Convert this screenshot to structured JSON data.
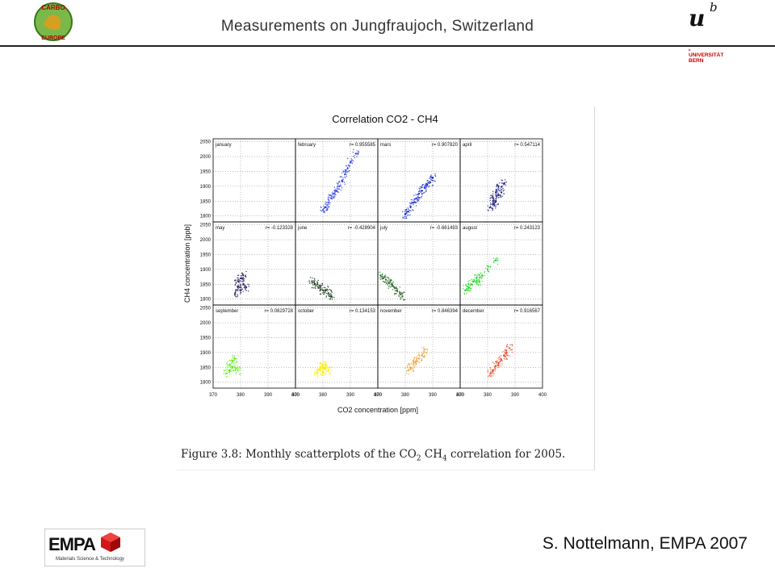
{
  "header": {
    "title": "Measurements on Jungfraujoch, Switzerland",
    "carbo_logo_text": "CARBO EUROPE",
    "unibern_mark": "u",
    "unibern_sup": "b",
    "unibern_line1": "UNIVERSITÄT",
    "unibern_line2": "BERN"
  },
  "figure": {
    "caption_prefix": "Figure 3.8: Monthly scatterplots of the CO",
    "caption_sub1": "2",
    "caption_mid": " CH",
    "caption_sub2": "4",
    "caption_suffix": " correlation for 2005."
  },
  "footer": {
    "empa_text": "EMPA",
    "empa_tagline": "Materials Science & Technology",
    "author": "S. Nottelmann, EMPA 2007"
  },
  "chart_data": {
    "type": "scatter",
    "title": "Correlation CO2 - CH4",
    "xlabel": "CO2 concentration [ppm]",
    "ylabel": "CH4 concentration [ppb]",
    "xlim": [
      370,
      400
    ],
    "ylim": [
      1780,
      2060
    ],
    "xticks": [
      370,
      380,
      390,
      400
    ],
    "yticks": [
      1800,
      1850,
      1900,
      1950,
      2000,
      2050
    ],
    "grid": true,
    "panels": [
      {
        "month": "january",
        "r": "",
        "color": "#000000",
        "x": [],
        "y": []
      },
      {
        "month": "february",
        "r": "r= 0.955585",
        "color": "#2a3fe0",
        "x": [
          380,
          381,
          382,
          383,
          384,
          385,
          386,
          387,
          388,
          389,
          390,
          392
        ],
        "y": [
          1820,
          1830,
          1845,
          1860,
          1875,
          1885,
          1900,
          1920,
          1940,
          1960,
          1980,
          2010
        ]
      },
      {
        "month": "mars",
        "r": "r= 0.907820",
        "color": "#1428c8",
        "x": [
          380,
          381,
          382,
          383,
          384,
          385,
          386,
          387,
          388,
          389,
          390
        ],
        "y": [
          1805,
          1815,
          1830,
          1845,
          1860,
          1875,
          1885,
          1895,
          1905,
          1915,
          1930
        ]
      },
      {
        "month": "april",
        "r": "r= 0.547114",
        "color": "#1a1a7a",
        "x": [
          381,
          382,
          382,
          383,
          383,
          384,
          384,
          385,
          386
        ],
        "y": [
          1830,
          1840,
          1860,
          1850,
          1880,
          1870,
          1900,
          1880,
          1910
        ]
      },
      {
        "month": "may",
        "r": "r= -0.123328",
        "color": "#2a1a5c",
        "x": [
          378,
          379,
          379,
          380,
          380,
          381,
          381,
          382
        ],
        "y": [
          1820,
          1840,
          1860,
          1830,
          1870,
          1850,
          1880,
          1840
        ]
      },
      {
        "month": "june",
        "r": "r= -0.428904",
        "color": "#1a3a1a",
        "x": [
          376,
          377,
          378,
          379,
          380,
          381,
          382,
          383
        ],
        "y": [
          1860,
          1850,
          1850,
          1840,
          1830,
          1830,
          1820,
          1810
        ]
      },
      {
        "month": "july",
        "r": "r= -0.661493",
        "color": "#2a6a2a",
        "x": [
          371,
          372,
          373,
          374,
          375,
          376,
          377,
          378,
          379
        ],
        "y": [
          1880,
          1870,
          1865,
          1855,
          1850,
          1840,
          1830,
          1820,
          1810
        ]
      },
      {
        "month": "august",
        "r": "r= 0.243123",
        "color": "#22d422",
        "x": [
          372,
          373,
          374,
          375,
          376,
          377,
          378,
          380,
          383
        ],
        "y": [
          1830,
          1840,
          1850,
          1860,
          1870,
          1860,
          1880,
          1900,
          1930
        ]
      },
      {
        "month": "september",
        "r": "r= 0.0829728",
        "color": "#66ee22",
        "x": [
          375,
          376,
          376,
          377,
          377,
          378,
          378,
          379
        ],
        "y": [
          1830,
          1840,
          1860,
          1850,
          1870,
          1850,
          1880,
          1840
        ]
      },
      {
        "month": "october",
        "r": "r= 0.134153",
        "color": "#ffee00",
        "x": [
          378,
          379,
          379,
          380,
          380,
          381,
          381,
          382
        ],
        "y": [
          1830,
          1840,
          1850,
          1835,
          1855,
          1845,
          1860,
          1840
        ]
      },
      {
        "month": "november",
        "r": "r= 0.846394",
        "color": "#f0a030",
        "x": [
          381,
          382,
          383,
          384,
          385,
          386,
          387
        ],
        "y": [
          1840,
          1850,
          1860,
          1870,
          1880,
          1890,
          1910
        ]
      },
      {
        "month": "december",
        "r": "r= 0.916567",
        "color": "#ee4422",
        "x": [
          381,
          382,
          383,
          384,
          385,
          386,
          387,
          388
        ],
        "y": [
          1830,
          1840,
          1855,
          1865,
          1875,
          1890,
          1900,
          1915
        ]
      }
    ]
  }
}
